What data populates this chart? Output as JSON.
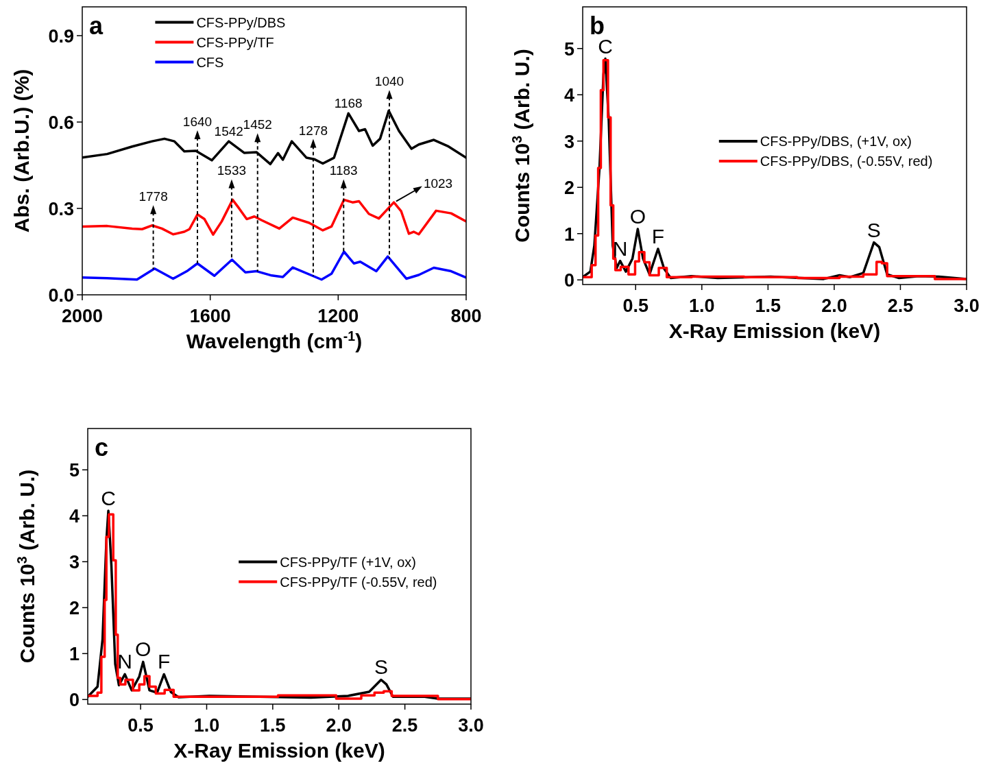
{
  "chart_data": [
    {
      "type": "line",
      "title": "a",
      "xlabel": "Wavelength (cm$^{-1}$)",
      "ylabel": "Abs. (Arb.U.) (%)",
      "xlim": [
        2000,
        800
      ],
      "xticks": [
        2000,
        1600,
        1200,
        800
      ],
      "ylim": [
        0,
        1.0
      ],
      "yticks": [
        {
          "value": 0,
          "label": "0.0"
        },
        0.3,
        0.6,
        0.9
      ],
      "legend": "top",
      "series": [
        {
          "name": "CFS-PPy/DBS",
          "color": "#000000",
          "x": [
            2000,
            1922,
            1844,
            1782,
            1743,
            1712,
            1681,
            1645,
            1595,
            1542,
            1494,
            1455,
            1412,
            1388,
            1373,
            1345,
            1299,
            1275,
            1248,
            1213,
            1168,
            1135,
            1116,
            1092,
            1069,
            1042,
            1010,
            971,
            948,
            901,
            855,
            800
          ],
          "values": [
            0.477,
            0.489,
            0.515,
            0.533,
            0.542,
            0.533,
            0.498,
            0.5,
            0.467,
            0.533,
            0.493,
            0.495,
            0.454,
            0.492,
            0.469,
            0.533,
            0.476,
            0.471,
            0.456,
            0.476,
            0.63,
            0.569,
            0.575,
            0.518,
            0.542,
            0.639,
            0.569,
            0.507,
            0.522,
            0.538,
            0.515,
            0.476
          ]
        },
        {
          "name": "CFS-PPy/TF",
          "color": "#ff0000",
          "x": [
            2000,
            1922,
            1844,
            1813,
            1782,
            1751,
            1716,
            1681,
            1665,
            1640,
            1618,
            1591,
            1564,
            1530,
            1509,
            1486,
            1462,
            1439,
            1384,
            1342,
            1291,
            1248,
            1221,
            1182,
            1155,
            1135,
            1104,
            1073,
            1026,
            1003,
            979,
            964,
            948,
            894,
            847,
            800
          ],
          "values": [
            0.237,
            0.239,
            0.23,
            0.228,
            0.241,
            0.23,
            0.21,
            0.219,
            0.228,
            0.279,
            0.263,
            0.209,
            0.255,
            0.33,
            0.299,
            0.263,
            0.272,
            0.259,
            0.23,
            0.268,
            0.25,
            0.224,
            0.237,
            0.33,
            0.321,
            0.325,
            0.281,
            0.265,
            0.321,
            0.29,
            0.212,
            0.219,
            0.21,
            0.292,
            0.283,
            0.255
          ]
        },
        {
          "name": "CFS",
          "color": "#0000ff",
          "x": [
            2000,
            1922,
            1829,
            1774,
            1716,
            1673,
            1640,
            1587,
            1532,
            1490,
            1455,
            1408,
            1373,
            1342,
            1252,
            1221,
            1182,
            1151,
            1131,
            1081,
            1045,
            987,
            948,
            901,
            847,
            800
          ],
          "values": [
            0.06,
            0.058,
            0.053,
            0.091,
            0.056,
            0.082,
            0.109,
            0.066,
            0.122,
            0.078,
            0.082,
            0.067,
            0.062,
            0.095,
            0.053,
            0.073,
            0.15,
            0.109,
            0.115,
            0.082,
            0.133,
            0.056,
            0.069,
            0.094,
            0.082,
            0.06
          ]
        }
      ],
      "annotations": [
        {
          "text": "1778",
          "x": 1778,
          "y": 0.24
        },
        {
          "text": "1640",
          "x": 1640,
          "y": 0.5
        },
        {
          "text": "1542",
          "x": 1542,
          "y": 0.533
        },
        {
          "text": "1533",
          "x": 1533,
          "y": 0.33
        },
        {
          "text": "1452",
          "x": 1452,
          "y": 0.49
        },
        {
          "text": "1278",
          "x": 1278,
          "y": 0.47
        },
        {
          "text": "1183",
          "x": 1183,
          "y": 0.33
        },
        {
          "text": "1168",
          "x": 1168,
          "y": 0.63
        },
        {
          "text": "1040",
          "x": 1040,
          "y": 0.64
        },
        {
          "text": "1023",
          "x": 1023,
          "y": 0.32
        }
      ]
    },
    {
      "type": "line",
      "title": "b",
      "xlabel": "X-Ray Emission (keV)",
      "ylabel": "Counts 10$^{3}$ (Arb. U.)",
      "xlim": [
        0.1,
        3.0
      ],
      "xticks": [
        0.5,
        {
          "value": 1,
          "label": "1.0"
        },
        1.5,
        {
          "value": 2,
          "label": "2.0"
        },
        2.5,
        {
          "value": 3,
          "label": "3.0"
        }
      ],
      "ylim": [
        -0.1,
        5.9
      ],
      "yticks": [
        0,
        1,
        2,
        3,
        4,
        5
      ],
      "legend": "right",
      "series": [
        {
          "name": "CFS-PPy/DBS, (+1V, ox)",
          "color": "#000000",
          "x": [
            0.1,
            0.158,
            0.188,
            0.227,
            0.257,
            0.271,
            0.297,
            0.327,
            0.357,
            0.383,
            0.426,
            0.476,
            0.516,
            0.556,
            0.605,
            0.669,
            0.715,
            0.765,
            0.924,
            1.12,
            1.52,
            1.92,
            2.04,
            2.12,
            2.22,
            2.3,
            2.34,
            2.4,
            2.49,
            2.64,
            2.79,
            3.0
          ],
          "values": [
            0.06,
            0.18,
            0.74,
            2.42,
            4.44,
            4.78,
            3.43,
            0.74,
            0.26,
            0.41,
            0.18,
            0.46,
            1.1,
            0.46,
            0.12,
            0.67,
            0.24,
            0.04,
            0.08,
            0.04,
            0.07,
            0.02,
            0.1,
            0.06,
            0.15,
            0.81,
            0.71,
            0.12,
            0.04,
            0.08,
            0.07,
            0.02
          ]
        },
        {
          "name": "CFS-PPy/DBS, (-0.55V, red)",
          "color": "#ff0000",
          "type": "step",
          "x": [
            0.1,
            0.168,
            0.197,
            0.217,
            0.237,
            0.257,
            0.277,
            0.291,
            0.311,
            0.331,
            0.347,
            0.387,
            0.446,
            0.496,
            0.526,
            0.566,
            0.605,
            0.675,
            0.735,
            0.924,
            1.32,
            1.72,
            2.04,
            2.22,
            2.32,
            2.36,
            2.4,
            2.64,
            2.76,
            3.0
          ],
          "values": [
            0.06,
            0.32,
            0.96,
            2.42,
            4.1,
            4.75,
            4.75,
            3.51,
            1.61,
            0.46,
            0.21,
            0.28,
            0.12,
            0.4,
            0.6,
            0.38,
            0.1,
            0.26,
            0.06,
            0.07,
            0.06,
            0.04,
            0.07,
            0.12,
            0.39,
            0.36,
            0.08,
            0.08,
            0.02,
            0.02
          ]
        }
      ],
      "annotations": [
        {
          "text": "C",
          "x": 0.271,
          "y": 4.78
        },
        {
          "text": "N",
          "x": 0.383,
          "y": 0.41
        },
        {
          "text": "O",
          "x": 0.516,
          "y": 1.1
        },
        {
          "text": "F",
          "x": 0.669,
          "y": 0.67
        },
        {
          "text": "S",
          "x": 2.3,
          "y": 0.81
        }
      ]
    },
    {
      "type": "line",
      "title": "c",
      "xlabel": "X-Ray Emission (keV)",
      "ylabel": "Counts 10$^{3}$ (Arb. U.)",
      "xlim": [
        0.1,
        3.0
      ],
      "xticks": [
        0.5,
        {
          "value": 1,
          "label": "1.0"
        },
        1.5,
        {
          "value": 2,
          "label": "2.0"
        },
        2.5,
        {
          "value": 3,
          "label": "3.0"
        }
      ],
      "ylim": [
        -0.1,
        5.9
      ],
      "yticks": [
        0,
        1,
        2,
        3,
        4,
        5
      ],
      "legend": "right",
      "series": [
        {
          "name": "CFS-PPy/TF (+1V, ox)",
          "color": "#000000",
          "x": [
            0.1,
            0.174,
            0.212,
            0.241,
            0.256,
            0.279,
            0.308,
            0.336,
            0.381,
            0.433,
            0.49,
            0.519,
            0.567,
            0.625,
            0.677,
            0.73,
            0.788,
            1.02,
            1.4,
            1.79,
            2.07,
            2.23,
            2.32,
            2.36,
            2.41,
            2.65,
            2.75,
            3.0
          ],
          "values": [
            0.06,
            0.28,
            1.31,
            3.46,
            4.11,
            2.92,
            0.77,
            0.31,
            0.55,
            0.2,
            0.5,
            0.82,
            0.2,
            0.15,
            0.55,
            0.16,
            0.05,
            0.08,
            0.06,
            0.04,
            0.08,
            0.17,
            0.43,
            0.33,
            0.06,
            0.06,
            0.02,
            0.02
          ]
        },
        {
          "name": "CFS-PPy/TF (-0.55V, red)",
          "color": "#ff0000",
          "type": "step",
          "x": [
            0.1,
            0.174,
            0.203,
            0.228,
            0.241,
            0.26,
            0.279,
            0.293,
            0.312,
            0.327,
            0.346,
            0.385,
            0.442,
            0.49,
            0.529,
            0.567,
            0.615,
            0.682,
            0.75,
            1.02,
            1.54,
            1.98,
            2.17,
            2.27,
            2.34,
            2.4,
            2.65,
            2.75,
            3.0
          ],
          "values": [
            0.08,
            0.15,
            0.93,
            2.17,
            3.54,
            4.03,
            4.03,
            3.03,
            1.41,
            0.47,
            0.33,
            0.43,
            0.2,
            0.33,
            0.51,
            0.28,
            0.13,
            0.21,
            0.06,
            0.06,
            0.09,
            0.02,
            0.09,
            0.15,
            0.18,
            0.08,
            0.08,
            0.01,
            0.02
          ]
        }
      ],
      "annotations": [
        {
          "text": "C",
          "x": 0.256,
          "y": 4.11
        },
        {
          "text": "N",
          "x": 0.381,
          "y": 0.55
        },
        {
          "text": "O",
          "x": 0.519,
          "y": 0.82
        },
        {
          "text": "F",
          "x": 0.677,
          "y": 0.55
        },
        {
          "text": "S",
          "x": 2.32,
          "y": 0.43
        }
      ]
    }
  ]
}
